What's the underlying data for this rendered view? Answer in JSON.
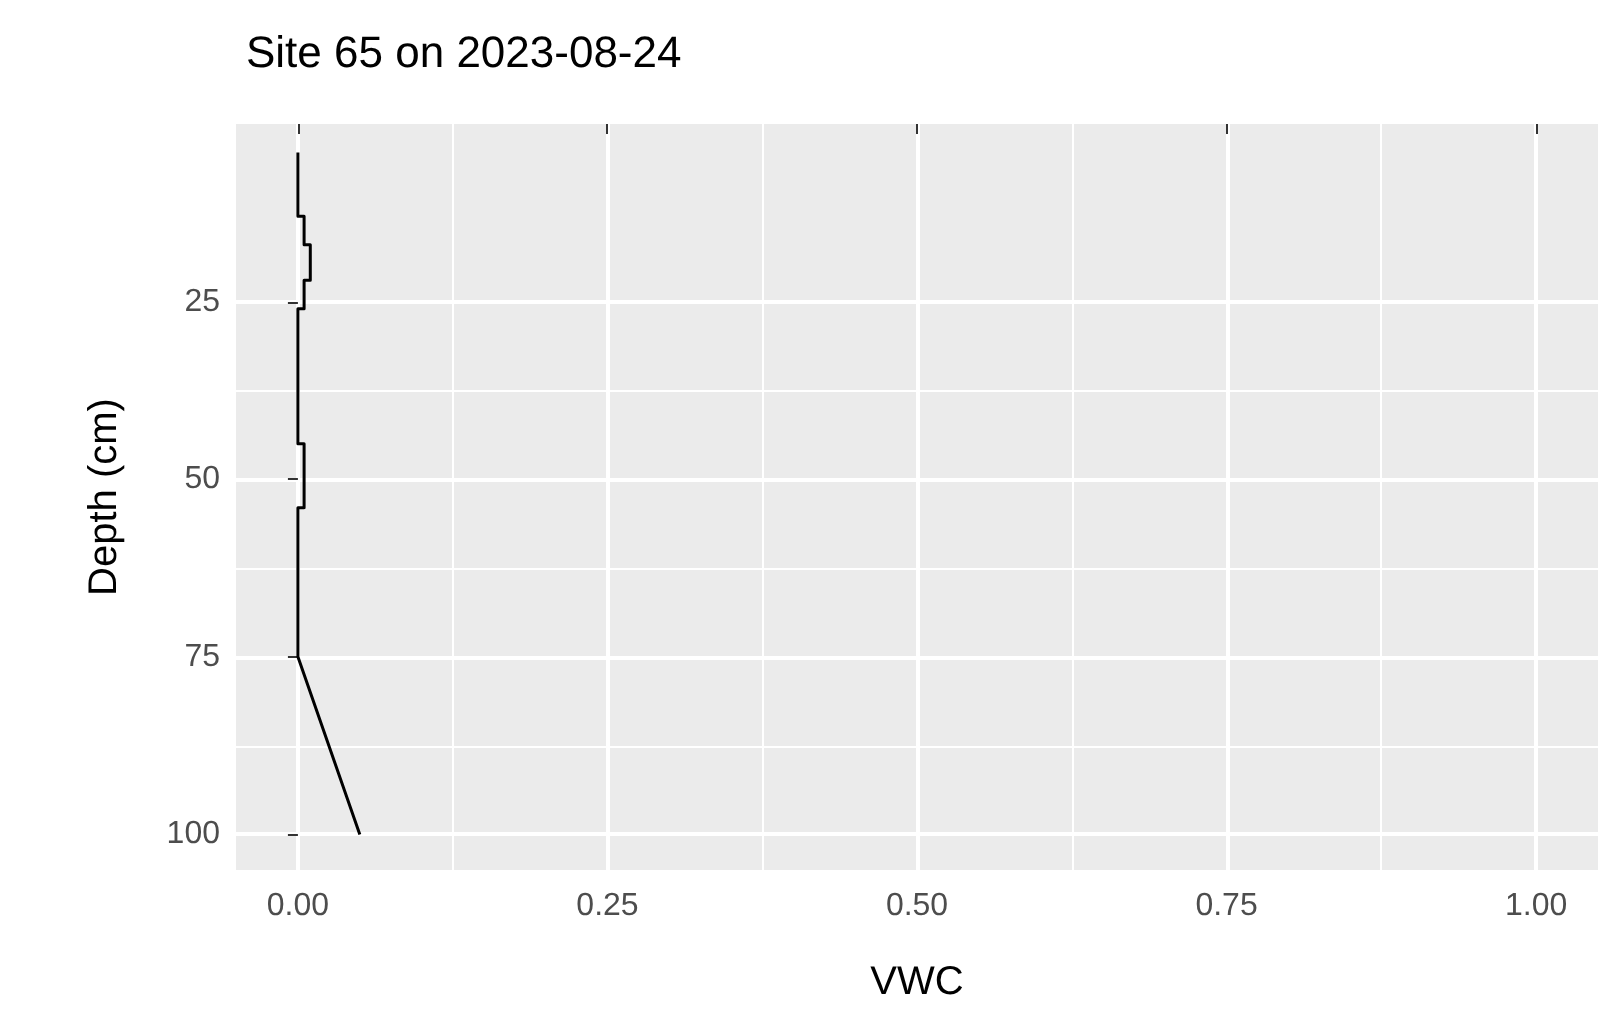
{
  "chart_data": {
    "type": "line",
    "title": "Site 65 on 2023-08-24",
    "xlabel": "VWC",
    "ylabel": "Depth (cm)",
    "series": [
      {
        "color": "#000000",
        "x": [
          0,
          0,
          0.005,
          0.005,
          0.01,
          0.01,
          0.005,
          0.005,
          0,
          0,
          0.005,
          0.005,
          0,
          0,
          0.05
        ],
        "values": [
          4,
          13,
          13,
          17,
          17,
          22,
          22,
          26,
          26,
          45,
          45,
          54,
          54,
          75,
          100
        ]
      }
    ],
    "xlim": [
      -0.05,
      1.05
    ],
    "xticks": [
      {
        "value": 0,
        "label": "0.00"
      },
      {
        "value": 0.25,
        "label": "0.25"
      },
      {
        "value": 0.5,
        "label": "0.50"
      },
      {
        "value": 0.75,
        "label": "0.75"
      },
      {
        "value": 1,
        "label": "1.00"
      }
    ],
    "ylim": [
      105,
      0
    ],
    "yticks": [
      25,
      50,
      75,
      100
    ],
    "grid": true,
    "marker": "none",
    "line_style": "solid"
  }
}
